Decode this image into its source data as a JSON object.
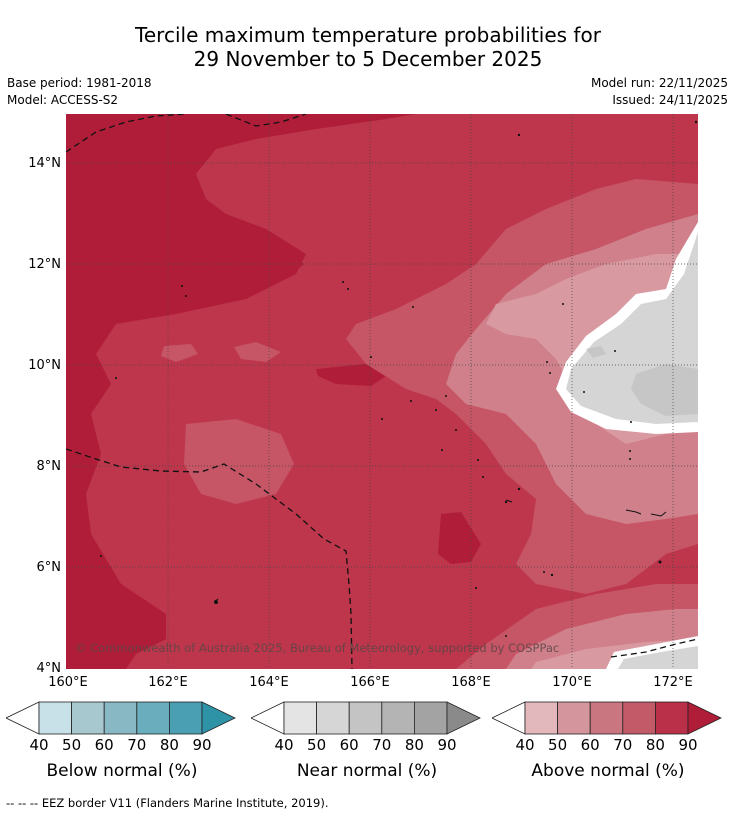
{
  "title": {
    "line1": "Tercile maximum temperature probabilities for",
    "line2": "29 November to 5 December 2025"
  },
  "meta": {
    "base_period": "Base period: 1981-2018",
    "model": "Model: ACCESS-S2",
    "model_run": "Model run: 22/11/2025",
    "issued": "Issued: 24/11/2025"
  },
  "map": {
    "lat_ticks": [
      "14°N",
      "12°N",
      "10°N",
      "8°N",
      "6°N",
      "4°N"
    ],
    "lon_ticks": [
      "160°E",
      "162°E",
      "164°E",
      "166°E",
      "168°E",
      "170°E",
      "172°E"
    ],
    "copyright": "© Commonwealth of Australia 2025, Bureau of Meteorology, supported by COSPPac",
    "colors": {
      "above_90": "#b01d38",
      "above_80": "#bd364c",
      "above_70": "#c65566",
      "above_60": "#d0808a",
      "above_50": "#d999a1",
      "near_60": "#d5d5d5",
      "near_70": "#c6c6c6",
      "white": "#ffffff"
    }
  },
  "colorbars": [
    {
      "title": "Below normal (%)",
      "labels": [
        "40",
        "50",
        "60",
        "70",
        "80",
        "90"
      ],
      "colors": [
        "#ffffff",
        "#c8e1e8",
        "#a7c8cf",
        "#88b8c4",
        "#6aadbd",
        "#4a9fb2",
        "#2f93a8"
      ]
    },
    {
      "title": "Near normal (%)",
      "labels": [
        "40",
        "50",
        "60",
        "70",
        "80",
        "90"
      ],
      "colors": [
        "#ffffff",
        "#e4e4e4",
        "#d6d6d6",
        "#c4c4c4",
        "#b4b4b4",
        "#a3a3a3",
        "#8a8a8a"
      ]
    },
    {
      "title": "Above normal (%)",
      "labels": [
        "40",
        "50",
        "60",
        "70",
        "80",
        "90"
      ],
      "colors": [
        "#ffffff",
        "#e2b8bd",
        "#d4959d",
        "#c97680",
        "#c35a68",
        "#bb3049",
        "#b01d38"
      ]
    }
  ],
  "footer": "--  --  -- EEZ border V11 (Flanders Marine Institute, 2019)."
}
